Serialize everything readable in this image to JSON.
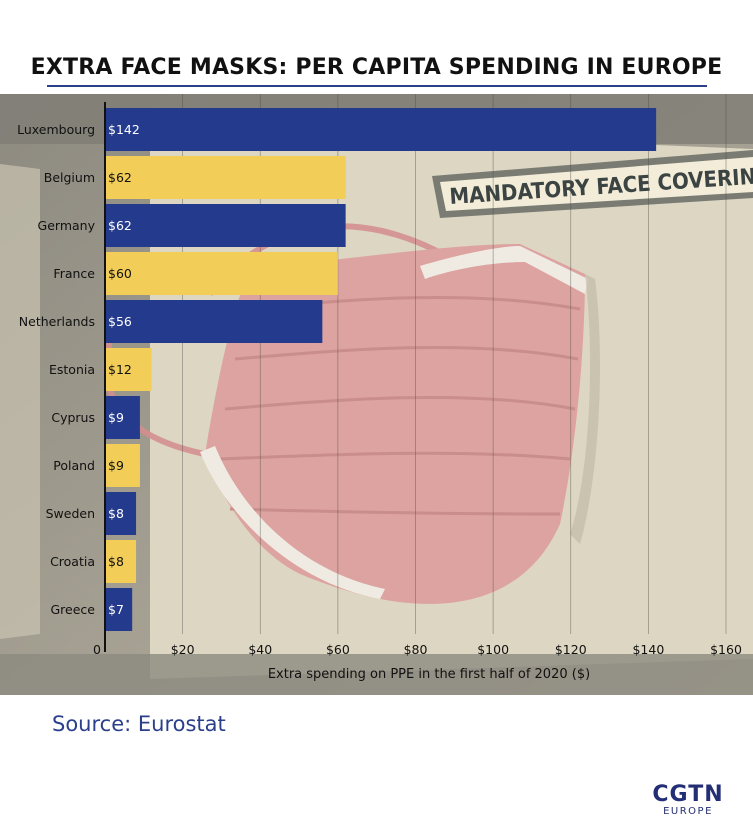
{
  "title": "EXTRA FACE MASKS: PER CAPITA SPENDING IN EUROPE",
  "background_sign_text": "MANDATORY FACE COVERINGS",
  "source": "Source: Eurostat",
  "logo": {
    "main": "CGTN",
    "sub": "EUROPE"
  },
  "colors": {
    "navy": "#243a8c",
    "yellow": "#f2cd58",
    "title_rule": "#2b3f8a",
    "source_text": "#2b3f8a"
  },
  "chart_data": {
    "type": "bar",
    "orientation": "horizontal",
    "xlabel": "Extra spending on PPE in the first half of 2020 ($)",
    "ylabel": "",
    "xlim": [
      0,
      160
    ],
    "grid": true,
    "categories": [
      "Luxembourg",
      "Belgium",
      "Germany",
      "France",
      "Netherlands",
      "Estonia",
      "Cyprus",
      "Poland",
      "Sweden",
      "Croatia",
      "Greece"
    ],
    "values": [
      142,
      62,
      62,
      60,
      56,
      12,
      9,
      9,
      8,
      8,
      7
    ],
    "data_labels": [
      "$142",
      "$62",
      "$62",
      "$60",
      "$56",
      "$12",
      "$9",
      "$9",
      "$8",
      "$8",
      "$7"
    ],
    "bar_colors": [
      "#243a8c",
      "#f2cd58",
      "#243a8c",
      "#f2cd58",
      "#243a8c",
      "#f2cd58",
      "#243a8c",
      "#f2cd58",
      "#243a8c",
      "#f2cd58",
      "#243a8c"
    ],
    "x_ticks": [
      {
        "value": 0,
        "label": "0"
      },
      {
        "value": 20,
        "label": "$20"
      },
      {
        "value": 40,
        "label": "$40"
      },
      {
        "value": 60,
        "label": "$60"
      },
      {
        "value": 80,
        "label": "$80"
      },
      {
        "value": 100,
        "label": "$100"
      },
      {
        "value": 120,
        "label": "$120"
      },
      {
        "value": 140,
        "label": "$140"
      },
      {
        "value": 160,
        "label": "$160"
      }
    ]
  }
}
